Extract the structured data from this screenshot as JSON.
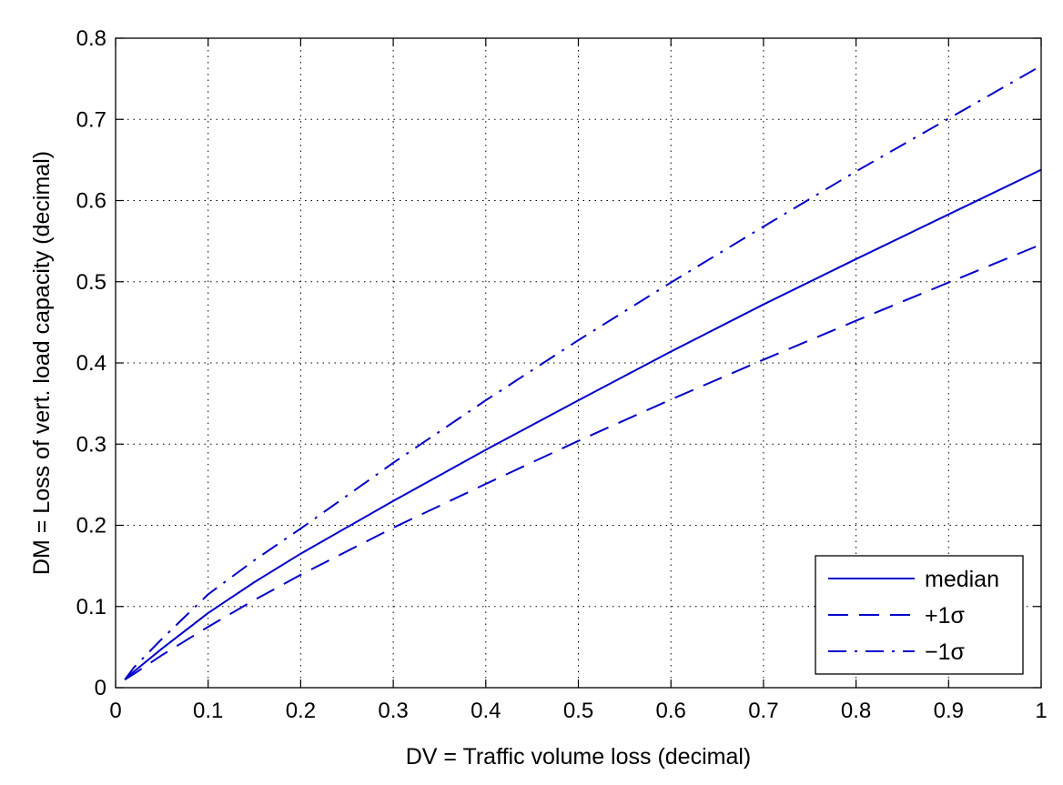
{
  "chart_data": {
    "type": "line",
    "title": "",
    "xlabel": "DV = Traffic volume loss (decimal)",
    "ylabel": "DM = Loss of vert. load capacity (decimal)",
    "xlim": [
      0,
      1
    ],
    "ylim": [
      0,
      0.8
    ],
    "xticks": [
      0,
      0.1,
      0.2,
      0.3,
      0.4,
      0.5,
      0.6,
      0.7,
      0.8,
      0.9,
      1
    ],
    "xtick_labels": [
      "0",
      "0.1",
      "0.2",
      "0.3",
      "0.4",
      "0.5",
      "0.6",
      "0.7",
      "0.8",
      "0.9",
      "1"
    ],
    "yticks": [
      0,
      0.1,
      0.2,
      0.3,
      0.4,
      0.5,
      0.6,
      0.7,
      0.8
    ],
    "ytick_labels": [
      "0",
      "0.1",
      "0.2",
      "0.3",
      "0.4",
      "0.5",
      "0.6",
      "0.7",
      "0.8"
    ],
    "grid": true,
    "legend_position": "bottom-right",
    "line_color": "#0000cc",
    "series": [
      {
        "name": "median",
        "style": "solid",
        "x": [
          0.01,
          0.02,
          0.05,
          0.1,
          0.15,
          0.2,
          0.3,
          0.4,
          0.5,
          0.6,
          0.7,
          0.8,
          0.9,
          1.0
        ],
        "y": [
          0.01,
          0.02,
          0.048,
          0.092,
          0.13,
          0.165,
          0.23,
          0.293,
          0.354,
          0.414,
          0.472,
          0.528,
          0.583,
          0.638
        ]
      },
      {
        "name": "+1σ",
        "style": "dashed",
        "x": [
          0.01,
          0.02,
          0.05,
          0.1,
          0.15,
          0.2,
          0.3,
          0.4,
          0.5,
          0.6,
          0.7,
          0.8,
          0.9,
          1.0
        ],
        "y": [
          0.01,
          0.017,
          0.04,
          0.075,
          0.108,
          0.139,
          0.197,
          0.251,
          0.304,
          0.355,
          0.404,
          0.452,
          0.499,
          0.546
        ]
      },
      {
        "name": "−1σ",
        "style": "dashdot",
        "x": [
          0.01,
          0.02,
          0.05,
          0.1,
          0.15,
          0.2,
          0.3,
          0.4,
          0.5,
          0.6,
          0.7,
          0.8,
          0.9,
          1.0
        ],
        "y": [
          0.01,
          0.025,
          0.06,
          0.115,
          0.157,
          0.196,
          0.277,
          0.354,
          0.428,
          0.499,
          0.568,
          0.636,
          0.701,
          0.766
        ]
      }
    ]
  }
}
